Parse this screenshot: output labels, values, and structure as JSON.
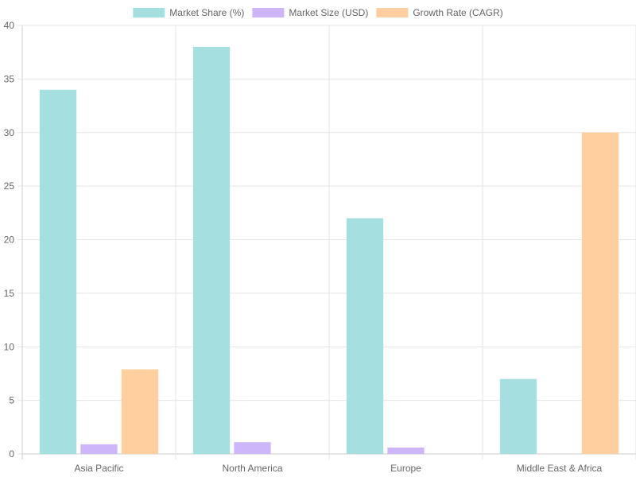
{
  "chart_data": {
    "type": "bar",
    "categories": [
      "Asia Pacific",
      "North America",
      "Europe",
      "Middle East & Africa"
    ],
    "series": [
      {
        "name": "Market Share (%)",
        "values": [
          34,
          38,
          22,
          7
        ],
        "color": "#a6dfe0"
      },
      {
        "name": "Market Size (USD)",
        "values": [
          0.9,
          1.1,
          0.6,
          0
        ],
        "color": "#cdb6f9"
      },
      {
        "name": "Growth Rate (CAGR)",
        "values": [
          7.9,
          0,
          0,
          30
        ],
        "color": "#ffcf9f"
      }
    ],
    "ylim": [
      0,
      40
    ],
    "yticks": [
      0,
      5,
      10,
      15,
      20,
      25,
      30,
      35,
      40
    ],
    "grid": true,
    "legend": "top-center"
  }
}
